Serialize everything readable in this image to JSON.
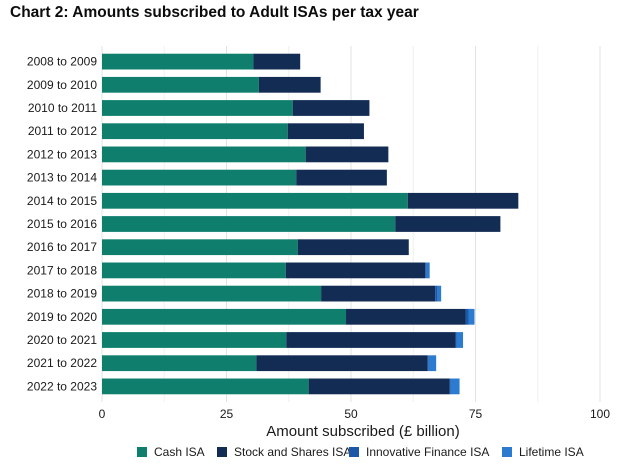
{
  "title": "Chart 2: Amounts subscribed to Adult ISAs per tax year",
  "chart_data": {
    "type": "bar",
    "orientation": "horizontal",
    "stacked": true,
    "title": "Chart 2: Amounts subscribed to Adult ISAs per tax year",
    "xlabel": "Amount subscribed (£ billion)",
    "ylabel": "",
    "xlim": [
      0,
      100
    ],
    "xticks": [
      0,
      25,
      50,
      75,
      100
    ],
    "grid": true,
    "legend_position": "bottom",
    "categories": [
      "2008 to 2009",
      "2009 to 2010",
      "2010 to 2011",
      "2011 to 2012",
      "2012 to 2013",
      "2013 to 2014",
      "2014 to 2015",
      "2015 to 2016",
      "2016 to 2017",
      "2017 to 2018",
      "2018 to 2019",
      "2019 to 2020",
      "2020 to 2021",
      "2021 to 2022",
      "2022 to 2023"
    ],
    "series": [
      {
        "name": "Cash ISA",
        "color": "#0f7e6c",
        "values": [
          30.4,
          31.5,
          38.3,
          37.3,
          40.9,
          39.0,
          61.4,
          58.9,
          39.3,
          36.9,
          44.0,
          49.0,
          37.0,
          31.0,
          41.5
        ]
      },
      {
        "name": "Stock and Shares ISA",
        "color": "#122c54",
        "values": [
          9.4,
          12.4,
          15.4,
          15.3,
          16.6,
          18.2,
          22.2,
          21.1,
          22.3,
          28.0,
          22.9,
          24.0,
          34.0,
          34.4,
          28.3
        ]
      },
      {
        "name": "Innovative Finance ISA",
        "color": "#1d57a8",
        "values": [
          0,
          0,
          0,
          0,
          0,
          0,
          0,
          0,
          0,
          0.3,
          0.5,
          0.6,
          0.2,
          0.2,
          0.2
        ]
      },
      {
        "name": "Lifetime ISA",
        "color": "#2b7bd0",
        "values": [
          0,
          0,
          0,
          0,
          0,
          0,
          0,
          0,
          0,
          0.6,
          0.7,
          1.2,
          1.3,
          1.5,
          1.8
        ]
      }
    ]
  }
}
